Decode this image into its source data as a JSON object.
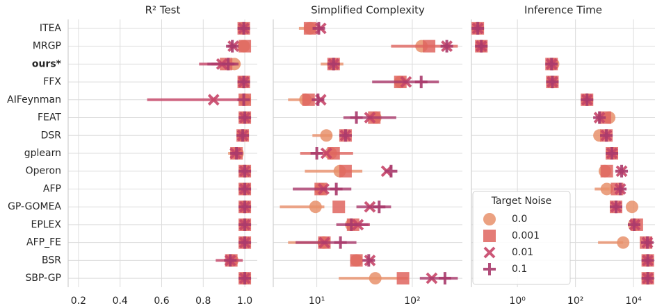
{
  "chart_data": [
    {
      "type": "pointrange",
      "title": "R² Test",
      "categories": [
        "ITEA",
        "MRGP",
        "ours*",
        "FFX",
        "AIFeynman",
        "FEAT",
        "DSR",
        "gplearn",
        "Operon",
        "AFP",
        "GP-GOMEA",
        "EPLEX",
        "AFP_FE",
        "BSR",
        "SBP-GP"
      ],
      "bold": [
        2
      ],
      "xlim": [
        0.15,
        1.06
      ],
      "xticks": [
        0.2,
        0.4,
        0.6,
        0.8,
        {
          "value": 1,
          "label": "1.0"
        }
      ],
      "log": false,
      "grid": true,
      "series": [
        {
          "color": "#e8906b",
          "marker": "circle",
          "values": [
            0.995,
            0.995,
            0.95,
            0.995,
            1.0,
            1.0,
            0.99,
            0.965,
            1.0,
            1.0,
            1.0,
            1.0,
            1.0,
            0.94,
            1.0
          ],
          "lo": [
            null,
            null,
            0.9,
            null,
            null,
            null,
            null,
            0.92,
            null,
            null,
            null,
            null,
            null,
            null,
            null
          ],
          "hi": [
            null,
            null,
            0.98,
            null,
            null,
            null,
            null,
            0.99,
            null,
            null,
            null,
            null,
            null,
            null,
            null
          ]
        },
        {
          "color": "#df655f",
          "marker": "square",
          "values": [
            0.995,
            1.0,
            0.91,
            0.995,
            1.0,
            1.0,
            0.99,
            0.96,
            1.0,
            1.0,
            1.0,
            1.0,
            1.0,
            0.935,
            1.0
          ],
          "lo": [
            null,
            null,
            0.84,
            null,
            null,
            null,
            null,
            null,
            null,
            null,
            null,
            null,
            null,
            null,
            null
          ],
          "hi": [
            null,
            null,
            0.96,
            null,
            null,
            null,
            null,
            null,
            null,
            null,
            null,
            null,
            null,
            null,
            null
          ]
        },
        {
          "color": "#c64568",
          "marker": "x",
          "values": [
            0.995,
            0.945,
            0.89,
            0.995,
            0.85,
            1.0,
            0.99,
            0.955,
            1.0,
            1.0,
            1.0,
            1.0,
            1.0,
            0.93,
            1.0
          ],
          "lo": [
            null,
            null,
            0.78,
            null,
            0.53,
            null,
            null,
            null,
            null,
            null,
            null,
            null,
            null,
            0.86,
            null
          ],
          "hi": [
            null,
            null,
            0.95,
            null,
            0.97,
            null,
            null,
            null,
            null,
            null,
            null,
            null,
            null,
            0.99,
            null
          ]
        },
        {
          "color": "#a93a6b",
          "marker": "plus",
          "values": [
            0.995,
            0.94,
            0.92,
            0.995,
            0.995,
            1.0,
            0.99,
            0.96,
            1.0,
            1.0,
            1.0,
            1.0,
            1.0,
            0.93,
            1.0
          ],
          "lo": [
            null,
            0.92,
            0.82,
            null,
            null,
            null,
            null,
            null,
            null,
            null,
            null,
            null,
            null,
            null,
            null
          ],
          "hi": [
            null,
            0.96,
            0.97,
            null,
            null,
            null,
            null,
            null,
            null,
            null,
            null,
            null,
            null,
            null,
            null
          ]
        }
      ]
    },
    {
      "type": "pointrange",
      "title": "Simplified Complexity",
      "xlim": [
        3.5,
        335
      ],
      "xticks": [
        {
          "value": 10,
          "label": "10¹"
        },
        {
          "value": 100,
          "label": "10²"
        }
      ],
      "log": true,
      "grid": true,
      "series": [
        {
          "color": "#e8906b",
          "marker": "circle",
          "values": [
            8.5,
            125,
            15,
            75,
            7.6,
            41,
            12.6,
            14,
            17.4,
            11,
            9.7,
            23,
            11.8,
            26,
            41
          ],
          "lo": [
            6.5,
            null,
            11,
            null,
            5,
            null,
            9,
            null,
            7.5,
            null,
            4.1,
            null,
            5,
            null,
            17
          ],
          "hi": [
            11,
            null,
            19,
            null,
            10,
            null,
            14.5,
            null,
            30,
            null,
            12,
            null,
            13,
            null,
            90
          ]
        },
        {
          "color": "#df655f",
          "marker": "square",
          "values": [
            8.5,
            150,
            15,
            75,
            8.2,
            40,
            20,
            15,
            20,
            11,
            17,
            24,
            12,
            26,
            80
          ],
          "lo": [
            null,
            60,
            null,
            null,
            null,
            null,
            null,
            6.7,
            null,
            null,
            null,
            null,
            null,
            null,
            null
          ],
          "hi": [
            null,
            300,
            null,
            null,
            null,
            null,
            null,
            24,
            null,
            null,
            null,
            null,
            null,
            null,
            null
          ]
        },
        {
          "color": "#c64568",
          "marker": "x",
          "values": [
            11,
            230,
            15,
            86,
            11,
            36,
            20,
            12.6,
            54,
            11.8,
            36,
            27,
            12,
            36,
            160
          ],
          "lo": [
            null,
            null,
            null,
            null,
            null,
            null,
            null,
            null,
            null,
            null,
            null,
            20,
            null,
            null,
            null
          ],
          "hi": [
            null,
            null,
            null,
            null,
            null,
            null,
            null,
            null,
            null,
            null,
            null,
            36,
            null,
            null,
            null
          ]
        },
        {
          "color": "#a93a6b",
          "marker": "plus",
          "values": [
            10.5,
            230,
            15,
            124,
            10.3,
            26,
            20,
            10,
            60,
            16,
            45,
            23,
            17.7,
            35,
            220
          ],
          "lo": [
            null,
            null,
            null,
            38,
            null,
            19,
            null,
            null,
            null,
            5.6,
            26,
            16,
            6,
            null,
            120
          ],
          "hi": [
            null,
            null,
            null,
            190,
            null,
            68,
            null,
            null,
            null,
            23,
            60,
            35,
            26,
            null,
            300
          ]
        }
      ]
    },
    {
      "type": "pointrange",
      "title": "Inference Time",
      "xlim": [
        0.026,
        55000
      ],
      "xticks": [
        {
          "value": 1,
          "label": "10⁰"
        },
        {
          "value": 100,
          "label": "10²"
        },
        {
          "value": 10000,
          "label": "10⁴"
        }
      ],
      "log": true,
      "grid": true,
      "legend_title": "Target Noise",
      "legend": "lower left",
      "series": [
        {
          "name": "0.0",
          "color": "#e8906b",
          "marker": "circle",
          "values": [
            0.043,
            0.057,
            17,
            16,
            250,
            1450,
            670,
            1800,
            1030,
            1200,
            8900,
            10500,
            4400,
            31000,
            31000
          ],
          "lo": [
            null,
            null,
            null,
            null,
            null,
            null,
            null,
            null,
            null,
            460,
            null,
            null,
            600,
            null,
            null
          ],
          "hi": [
            null,
            null,
            null,
            null,
            null,
            null,
            null,
            null,
            null,
            1500,
            null,
            null,
            4400,
            null,
            null
          ]
        },
        {
          "name": "0.001",
          "color": "#df655f",
          "marker": "square",
          "values": [
            0.043,
            0.057,
            15,
            16,
            250,
            1030,
            1160,
            1800,
            1200,
            2700,
            2500,
            13000,
            27000,
            31000,
            31000
          ]
        },
        {
          "name": "0.01",
          "color": "#c64568",
          "marker": "x",
          "values": [
            0.043,
            0.057,
            15,
            16,
            250,
            670,
            1160,
            1800,
            3900,
            3500,
            2500,
            11000,
            30000,
            31000,
            31000
          ]
        },
        {
          "name": "0.1",
          "color": "#a93a6b",
          "marker": "plus",
          "values": [
            0.043,
            0.057,
            15,
            16,
            250,
            670,
            1160,
            1800,
            3900,
            3500,
            2500,
            10500,
            30000,
            31000,
            31000
          ]
        }
      ]
    }
  ]
}
